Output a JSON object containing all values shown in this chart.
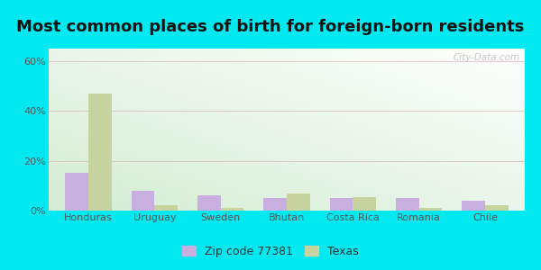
{
  "title": "Most common places of birth for foreign-born residents",
  "categories": [
    "Honduras",
    "Uruguay",
    "Sweden",
    "Bhutan",
    "Costa Rica",
    "Romania",
    "Chile"
  ],
  "zip_values": [
    15.0,
    8.0,
    6.0,
    5.0,
    5.0,
    5.0,
    4.0
  ],
  "texas_values": [
    47.0,
    2.0,
    1.0,
    7.0,
    5.5,
    1.0,
    2.0
  ],
  "zip_color": "#c9aee0",
  "texas_color": "#c8d4a0",
  "zip_label": "Zip code 77381",
  "texas_label": "Texas",
  "ylim": [
    0,
    65
  ],
  "yticks": [
    0,
    20,
    40,
    60
  ],
  "ytick_labels": [
    "0%",
    "20%",
    "40%",
    "60%"
  ],
  "background_outer": "#00e8f0",
  "watermark": "City-Data.com",
  "title_fontsize": 13,
  "tick_fontsize": 8,
  "legend_fontsize": 9,
  "bar_width": 0.35
}
